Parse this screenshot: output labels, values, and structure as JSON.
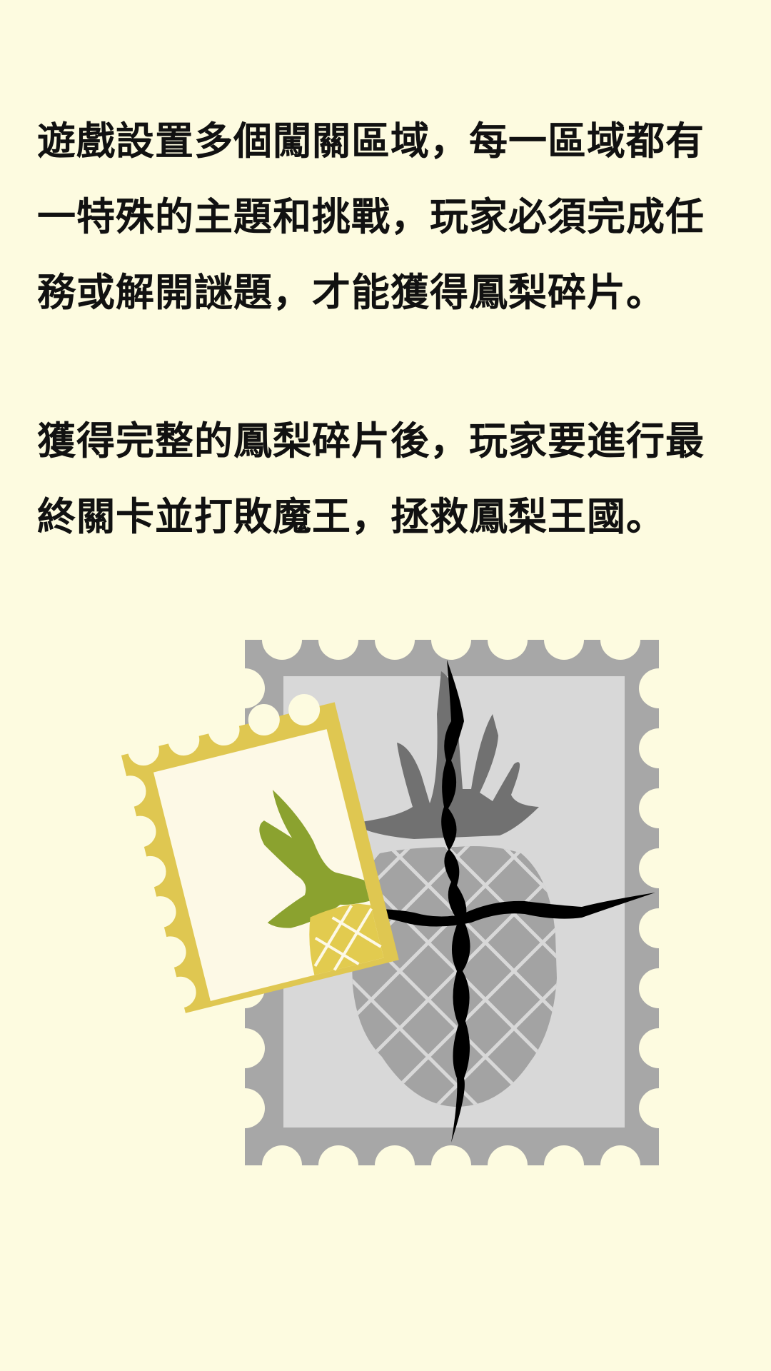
{
  "story": {
    "paragraph_1": {
      "line_1": "遊戲設置多個闖關區域，每一區域都有",
      "line_2": "一特殊的主題和挑戰，玩家必須完成任",
      "line_3": "務或解開謎題，才能獲得鳳梨碎片。"
    },
    "paragraph_2": {
      "line_1": "獲得完整的鳳梨碎片後，玩家要進行最",
      "line_2": "終關卡並打敗魔王，拯救鳳梨王國。"
    }
  },
  "colors": {
    "background": "#fdfbe0",
    "text": "#111111",
    "stamp_gray_border": "#a7a7a7",
    "stamp_gray_inner": "#d8d8d8",
    "pineapple_gray_body": "#a3a3a3",
    "pineapple_gray_leaves": "#717171",
    "crack": "#000000",
    "stamp_yellow_border": "#dfc751",
    "stamp_yellow_inner": "#fdf9e6",
    "pineapple_green_leaves": "#8ba22f",
    "pineapple_yellow_body": "#e2cb4f"
  },
  "icons": {
    "gray_stamp": "cracked-pineapple-stamp-icon",
    "yellow_stamp": "pineapple-fragment-stamp-icon"
  }
}
